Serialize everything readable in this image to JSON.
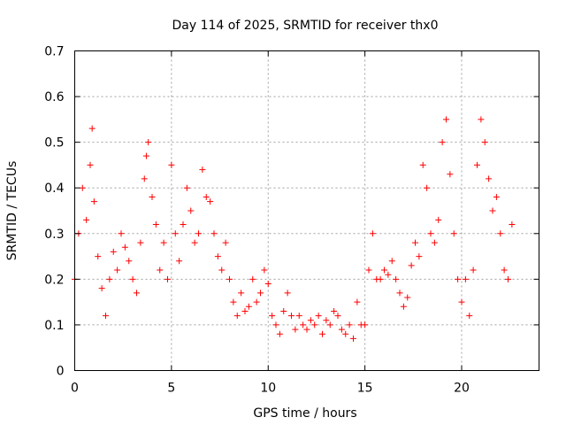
{
  "chart_data": {
    "type": "scatter",
    "title": "Day 114 of 2025, SRMTID for receiver thx0",
    "xlabel": "GPS time / hours",
    "ylabel": "SRMTID / TECUs",
    "xlim": [
      0,
      24
    ],
    "ylim": [
      0,
      0.7
    ],
    "x_ticks": [
      0,
      5,
      10,
      15,
      20
    ],
    "y_ticks": [
      0,
      0.1,
      0.2,
      0.3,
      0.4,
      0.5,
      0.6,
      0.7
    ],
    "x_tick_labels": [
      "0",
      "5",
      "10",
      "15",
      "20"
    ],
    "y_tick_labels": [
      "0",
      "0.1",
      "0.2",
      "0.3",
      "0.4",
      "0.5",
      "0.6",
      "0.7"
    ],
    "grid": true,
    "marker": "+",
    "color": "#ff0000",
    "series": [
      {
        "name": "SRMTID",
        "x": [
          0.0,
          0.2,
          0.4,
          0.6,
          0.8,
          0.9,
          1.0,
          1.2,
          1.4,
          1.6,
          1.8,
          2.0,
          2.2,
          2.4,
          2.6,
          2.8,
          3.0,
          3.2,
          3.4,
          3.6,
          3.7,
          3.8,
          4.0,
          4.2,
          4.4,
          4.6,
          4.8,
          5.0,
          5.2,
          5.4,
          5.6,
          5.8,
          6.0,
          6.2,
          6.4,
          6.6,
          6.8,
          7.0,
          7.2,
          7.4,
          7.6,
          7.8,
          8.0,
          8.2,
          8.4,
          8.6,
          8.8,
          9.0,
          9.2,
          9.4,
          9.6,
          9.8,
          10.0,
          10.2,
          10.4,
          10.6,
          10.8,
          11.0,
          11.2,
          11.4,
          11.6,
          11.8,
          12.0,
          12.2,
          12.4,
          12.6,
          12.8,
          13.0,
          13.2,
          13.4,
          13.6,
          13.8,
          14.0,
          14.2,
          14.4,
          14.6,
          14.8,
          15.0,
          15.2,
          15.4,
          15.6,
          15.8,
          16.0,
          16.2,
          16.4,
          16.6,
          16.8,
          17.0,
          17.2,
          17.4,
          17.6,
          17.8,
          18.0,
          18.2,
          18.4,
          18.6,
          18.8,
          19.0,
          19.2,
          19.4,
          19.6,
          19.8,
          20.0,
          20.2,
          20.4,
          20.6,
          20.8,
          21.0,
          21.2,
          21.4,
          21.6,
          21.8,
          22.0,
          22.2,
          22.4,
          22.6
        ],
        "y": [
          0.2,
          0.3,
          0.4,
          0.33,
          0.45,
          0.53,
          0.37,
          0.25,
          0.18,
          0.12,
          0.2,
          0.26,
          0.22,
          0.3,
          0.27,
          0.24,
          0.2,
          0.17,
          0.28,
          0.42,
          0.47,
          0.5,
          0.38,
          0.32,
          0.22,
          0.28,
          0.2,
          0.45,
          0.3,
          0.24,
          0.32,
          0.4,
          0.35,
          0.28,
          0.3,
          0.44,
          0.38,
          0.37,
          0.3,
          0.25,
          0.22,
          0.28,
          0.2,
          0.15,
          0.12,
          0.17,
          0.13,
          0.14,
          0.2,
          0.15,
          0.17,
          0.22,
          0.19,
          0.12,
          0.1,
          0.08,
          0.13,
          0.17,
          0.12,
          0.09,
          0.12,
          0.1,
          0.09,
          0.11,
          0.1,
          0.12,
          0.08,
          0.11,
          0.1,
          0.13,
          0.12,
          0.09,
          0.08,
          0.1,
          0.07,
          0.15,
          0.1,
          0.1,
          0.22,
          0.3,
          0.2,
          0.2,
          0.22,
          0.21,
          0.24,
          0.2,
          0.17,
          0.14,
          0.16,
          0.23,
          0.28,
          0.25,
          0.45,
          0.4,
          0.3,
          0.28,
          0.33,
          0.5,
          0.55,
          0.43,
          0.3,
          0.2,
          0.15,
          0.2,
          0.12,
          0.22,
          0.45,
          0.55,
          0.5,
          0.42,
          0.35,
          0.38,
          0.3,
          0.22,
          0.2,
          0.32
        ]
      }
    ]
  }
}
